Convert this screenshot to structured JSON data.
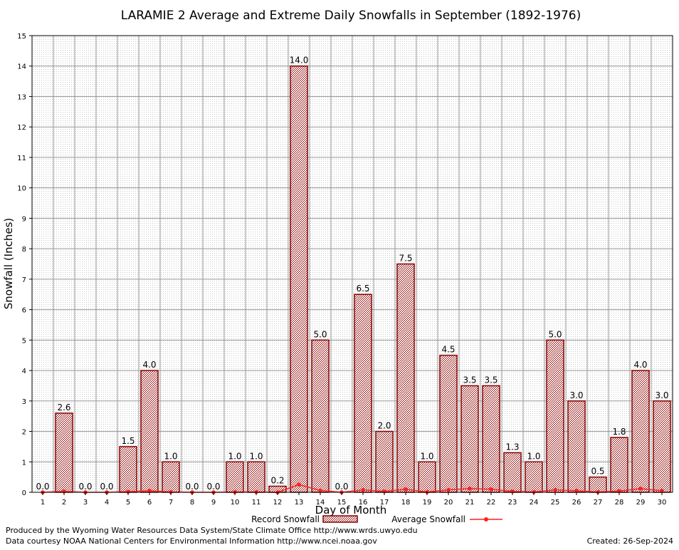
{
  "chart_data": {
    "type": "bar",
    "title": "LARAMIE 2 Average and Extreme Daily Snowfalls in September (1892-1976)",
    "xlabel": "Day of Month",
    "ylabel": "Snowfall (Inches)",
    "ylim": [
      0,
      15
    ],
    "yticks": [
      "0",
      "1",
      "2",
      "3",
      "4",
      "5",
      "6",
      "7",
      "8",
      "9",
      "10",
      "11",
      "12",
      "13",
      "14",
      "15"
    ],
    "grid": true,
    "legend_position": "bottom",
    "categories": [
      "1",
      "2",
      "3",
      "4",
      "5",
      "6",
      "7",
      "8",
      "9",
      "10",
      "11",
      "12",
      "13",
      "14",
      "15",
      "16",
      "17",
      "18",
      "19",
      "20",
      "21",
      "22",
      "23",
      "24",
      "25",
      "26",
      "27",
      "28",
      "29",
      "30"
    ],
    "series": [
      {
        "name": "Record Snowfall",
        "type": "bar",
        "color": "#8b0000",
        "values": [
          0.0,
          2.6,
          0.0,
          0.0,
          1.5,
          4.0,
          1.0,
          0.0,
          0.0,
          1.0,
          1.0,
          0.2,
          14.0,
          5.0,
          0.0,
          6.5,
          2.0,
          7.5,
          1.0,
          4.5,
          3.5,
          3.5,
          1.3,
          1.0,
          5.0,
          3.0,
          0.5,
          1.8,
          4.0,
          3.0
        ],
        "labels": [
          "0.0",
          "2.6",
          "0.0",
          "0.0",
          "1.5",
          "4.0",
          "1.0",
          "0.0",
          "0.0",
          "1.0",
          "1.0",
          "0.2",
          "14.0",
          "5.0",
          "0.0",
          "6.5",
          "2.0",
          "7.5",
          "1.0",
          "4.5",
          "3.5",
          "3.5",
          "1.3",
          "1.0",
          "5.0",
          "3.0",
          "0.5",
          "1.8",
          "4.0",
          "3.0"
        ]
      },
      {
        "name": "Average Snowfall",
        "type": "line",
        "color": "#ff2020",
        "values": [
          0.0,
          0.03,
          0.0,
          0.0,
          0.02,
          0.05,
          0.01,
          0.0,
          0.0,
          0.01,
          0.01,
          0.0,
          0.25,
          0.06,
          0.0,
          0.08,
          0.03,
          0.1,
          0.01,
          0.08,
          0.12,
          0.1,
          0.03,
          0.01,
          0.08,
          0.05,
          0.01,
          0.04,
          0.12,
          0.05
        ]
      }
    ]
  },
  "footer": {
    "produced_by": "Produced by the Wyoming Water Resources Data System/State Climate Office http://www.wrds.uwyo.edu",
    "data_courtesy": "Data courtesy NOAA National Centers for Environmental Information http://www.ncei.noaa.gov",
    "created": "Created: 26-Sep-2024"
  }
}
